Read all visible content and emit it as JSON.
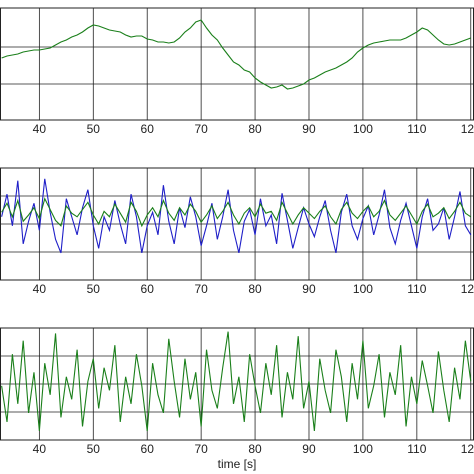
{
  "chart_data": [
    {
      "type": "line",
      "x": [
        33,
        34,
        35,
        36,
        37,
        38,
        39,
        40,
        41,
        42,
        43,
        44,
        45,
        46,
        47,
        48,
        49,
        50,
        51,
        52,
        53,
        54,
        55,
        56,
        57,
        58,
        59,
        60,
        61,
        62,
        63,
        64,
        65,
        66,
        67,
        68,
        69,
        70,
        71,
        72,
        73,
        74,
        75,
        76,
        77,
        78,
        79,
        80,
        81,
        82,
        83,
        84,
        85,
        86,
        87,
        88,
        89,
        90,
        91,
        92,
        93,
        94,
        95,
        96,
        97,
        98,
        99,
        100,
        101,
        102,
        103,
        104,
        105,
        106,
        107,
        108,
        109,
        110,
        111,
        112,
        113,
        114,
        115,
        116,
        117,
        118,
        119,
        120
      ],
      "series": [
        {
          "color": "#1a7f1a",
          "values": [
            62,
            64,
            65,
            66,
            68,
            69,
            70,
            70,
            71,
            72,
            75,
            78,
            80,
            83,
            85,
            88,
            92,
            95,
            94,
            92,
            90,
            89,
            88,
            85,
            83,
            84,
            84,
            81,
            80,
            78,
            78,
            77,
            78,
            82,
            88,
            92,
            98,
            100,
            92,
            85,
            80,
            72,
            65,
            58,
            55,
            50,
            48,
            42,
            38,
            35,
            32,
            33,
            35,
            31,
            32,
            34,
            36,
            40,
            42,
            45,
            48,
            50,
            52,
            55,
            58,
            62,
            68,
            72,
            75,
            77,
            78,
            79,
            80,
            80,
            80,
            82,
            85,
            88,
            92,
            90,
            85,
            80,
            76,
            75,
            76,
            78,
            80,
            82
          ]
        }
      ],
      "xlim": [
        32.7,
        120.6
      ],
      "xticks": [
        40,
        50,
        60,
        70,
        80,
        90,
        100,
        110,
        120
      ],
      "ylim": [
        0,
        112
      ],
      "yticks": [
        36,
        73
      ],
      "grid": true
    },
    {
      "type": "line",
      "x": [
        33,
        34,
        35,
        36,
        37,
        38,
        39,
        40,
        41,
        42,
        43,
        44,
        45,
        46,
        47,
        48,
        49,
        50,
        51,
        52,
        53,
        54,
        55,
        56,
        57,
        58,
        59,
        60,
        61,
        62,
        63,
        64,
        65,
        66,
        67,
        68,
        69,
        70,
        71,
        72,
        73,
        74,
        75,
        76,
        77,
        78,
        79,
        80,
        81,
        82,
        83,
        84,
        85,
        86,
        87,
        88,
        89,
        90,
        91,
        92,
        93,
        94,
        95,
        96,
        97,
        98,
        99,
        100,
        101,
        102,
        103,
        104,
        105,
        106,
        107,
        108,
        109,
        110,
        111,
        112,
        113,
        114,
        115,
        116,
        117,
        118,
        119,
        120
      ],
      "series": [
        {
          "color": "#1f1fc8",
          "values": [
            70,
            95,
            60,
            110,
            40,
            65,
            85,
            55,
            112,
            75,
            45,
            30,
            90,
            70,
            50,
            80,
            100,
            60,
            35,
            70,
            55,
            88,
            62,
            40,
            95,
            70,
            30,
            60,
            75,
            50,
            105,
            65,
            40,
            80,
            58,
            92,
            70,
            38,
            60,
            85,
            45,
            70,
            100,
            55,
            30,
            65,
            78,
            50,
            90,
            60,
            72,
            40,
            96,
            66,
            35,
            58,
            80,
            62,
            48,
            70,
            88,
            55,
            30,
            75,
            95,
            60,
            45,
            68,
            82,
            50,
            72,
            100,
            58,
            40,
            66,
            85,
            60,
            35,
            70,
            90,
            55,
            62,
            80,
            45,
            70,
            98,
            60,
            50
          ]
        },
        {
          "color": "#1a7f1a",
          "values": [
            75,
            85,
            70,
            88,
            65,
            72,
            80,
            68,
            90,
            78,
            66,
            60,
            82,
            74,
            70,
            78,
            86,
            72,
            62,
            76,
            70,
            84,
            74,
            64,
            86,
            76,
            60,
            72,
            80,
            70,
            88,
            74,
            66,
            80,
            72,
            84,
            76,
            64,
            72,
            82,
            68,
            76,
            86,
            72,
            62,
            74,
            80,
            70,
            84,
            74,
            76,
            66,
            86,
            74,
            62,
            72,
            80,
            74,
            68,
            76,
            82,
            70,
            62,
            78,
            86,
            74,
            68,
            76,
            82,
            70,
            76,
            88,
            72,
            66,
            74,
            82,
            72,
            62,
            76,
            84,
            70,
            74,
            80,
            68,
            76,
            86,
            74,
            70
          ]
        }
      ],
      "xlim": [
        32.7,
        120.6
      ],
      "xticks": [
        40,
        50,
        60,
        70,
        80,
        90,
        100,
        110,
        120
      ],
      "ylim": [
        0,
        124
      ],
      "yticks": [
        31,
        62,
        93
      ],
      "grid": true
    },
    {
      "type": "line",
      "x": [
        33,
        34,
        35,
        36,
        37,
        38,
        39,
        40,
        41,
        42,
        43,
        44,
        45,
        46,
        47,
        48,
        49,
        50,
        51,
        52,
        53,
        54,
        55,
        56,
        57,
        58,
        59,
        60,
        61,
        62,
        63,
        64,
        65,
        66,
        67,
        68,
        69,
        70,
        71,
        72,
        73,
        74,
        75,
        76,
        77,
        78,
        79,
        80,
        81,
        82,
        83,
        84,
        85,
        86,
        87,
        88,
        89,
        90,
        91,
        92,
        93,
        94,
        95,
        96,
        97,
        98,
        99,
        100,
        101,
        102,
        103,
        104,
        105,
        106,
        107,
        108,
        109,
        110,
        111,
        112,
        113,
        114,
        115,
        116,
        117,
        118,
        119,
        120
      ],
      "series": [
        {
          "color": "#1a7f1a",
          "values": [
            60,
            20,
            95,
            40,
            110,
            30,
            75,
            10,
            85,
            50,
            118,
            25,
            70,
            45,
            100,
            15,
            65,
            90,
            35,
            80,
            55,
            105,
            20,
            70,
            40,
            95,
            60,
            10,
            85,
            50,
            30,
            112,
            65,
            25,
            90,
            45,
            75,
            15,
            100,
            55,
            35,
            80,
            120,
            40,
            70,
            20,
            95,
            60,
            30,
            85,
            50,
            105,
            25,
            75,
            45,
            115,
            35,
            65,
            10,
            90,
            55,
            30,
            100,
            70,
            20,
            85,
            45,
            110,
            35,
            60,
            95,
            25,
            75,
            50,
            105,
            15,
            70,
            40,
            88,
            60,
            30,
            98,
            55,
            20,
            80,
            45,
            110,
            65
          ]
        }
      ],
      "xlim": [
        32.7,
        120.6
      ],
      "xticks": [
        40,
        50,
        60,
        70,
        80,
        90,
        100,
        110,
        120
      ],
      "ylim": [
        0,
        124
      ],
      "yticks": [
        31,
        62,
        93
      ],
      "grid": true,
      "xlabel": "time [s]"
    }
  ]
}
